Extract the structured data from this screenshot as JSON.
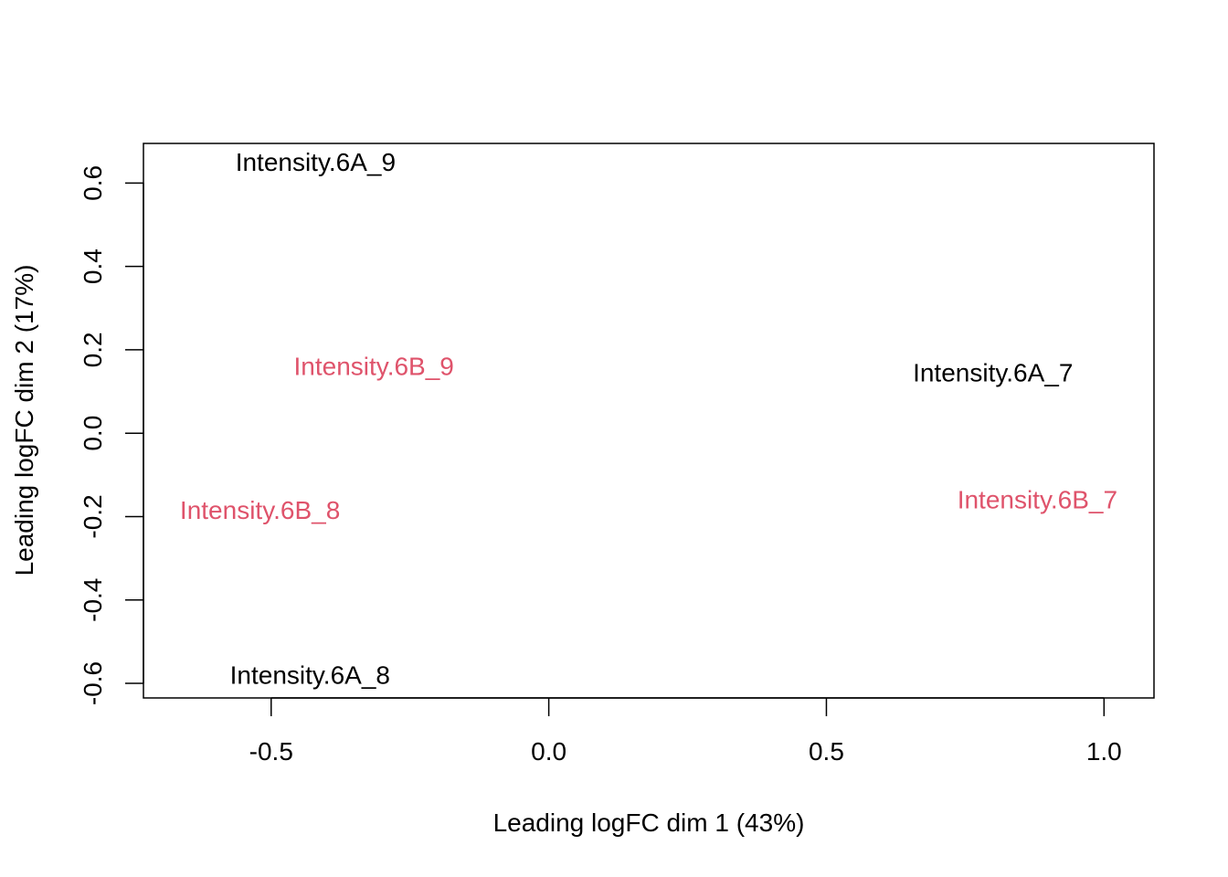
{
  "chart_data": {
    "type": "scatter",
    "title": "",
    "xlabel": "Leading logFC dim 1 (43%)",
    "ylabel": "Leading logFC dim 2 (17%)",
    "xlim": [
      -0.73,
      1.09
    ],
    "ylim": [
      -0.635,
      0.695
    ],
    "xticks": [
      -0.5,
      0.0,
      0.5,
      1.0
    ],
    "xtick_labels": [
      "-0.5",
      "0.0",
      "0.5",
      "1.0"
    ],
    "yticks": [
      -0.6,
      -0.4,
      -0.2,
      0.0,
      0.2,
      0.4,
      0.6
    ],
    "ytick_labels": [
      "-0.6",
      "-0.4",
      "-0.2",
      "0.0",
      "0.2",
      "0.4",
      "0.6"
    ],
    "grid": false,
    "legend": "none",
    "points": [
      {
        "label": "Intensity.6A_9",
        "x": -0.42,
        "y": 0.65,
        "color": "#000000"
      },
      {
        "label": "Intensity.6B_9",
        "x": -0.315,
        "y": 0.16,
        "color": "#DF536B"
      },
      {
        "label": "Intensity.6A_7",
        "x": 0.8,
        "y": 0.145,
        "color": "#000000"
      },
      {
        "label": "Intensity.6B_7",
        "x": 0.88,
        "y": -0.16,
        "color": "#DF536B"
      },
      {
        "label": "Intensity.6B_8",
        "x": -0.52,
        "y": -0.185,
        "color": "#DF536B"
      },
      {
        "label": "Intensity.6A_8",
        "x": -0.43,
        "y": -0.58,
        "color": "#000000"
      }
    ]
  }
}
